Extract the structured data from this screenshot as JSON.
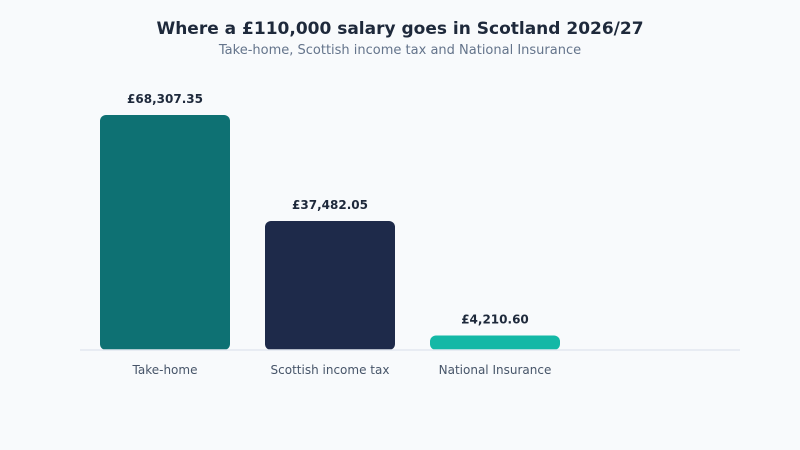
{
  "chart_data": {
    "type": "bar",
    "title": "Where a £110,000 salary goes in Scotland 2026/27",
    "subtitle": "Take-home, Scottish income tax and National Insurance",
    "categories": [
      "Take-home",
      "Scottish income tax",
      "National Insurance"
    ],
    "values": [
      68307.35,
      37482.05,
      4210.6
    ],
    "value_labels": [
      "£68,307.35",
      "£37,482.05",
      "£4,210.60"
    ],
    "colors": [
      "#0e7173",
      "#1e2a4a",
      "#14b8a6"
    ],
    "axis_color": "#e2e8f0",
    "ylim": [
      0,
      80000
    ],
    "grid": false,
    "legend": "none"
  }
}
